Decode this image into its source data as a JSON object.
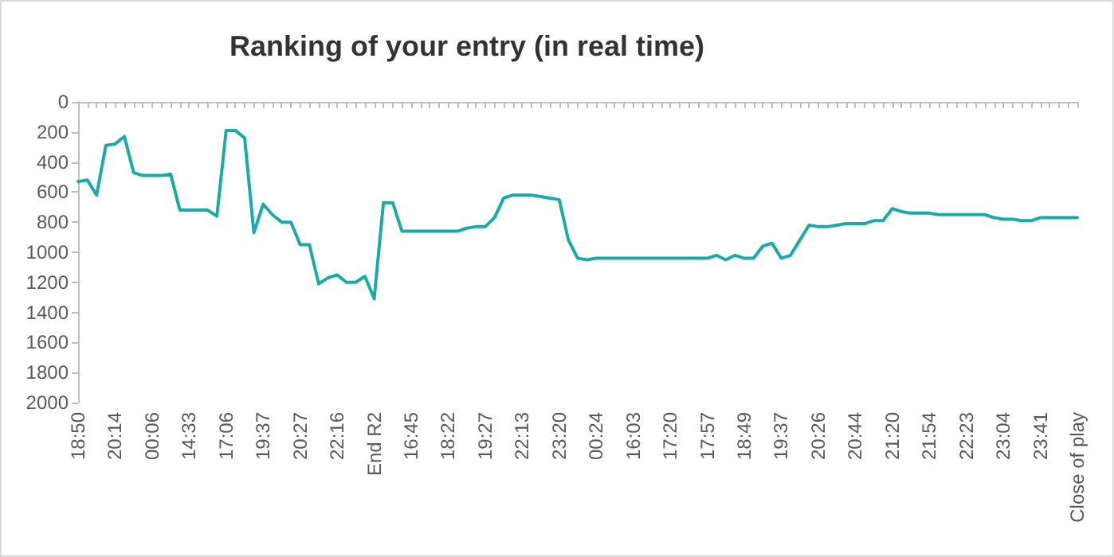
{
  "chart_data": {
    "type": "line",
    "title": "Ranking of your entry (in real time)",
    "categories": [
      "18:50",
      null,
      null,
      null,
      "20:14",
      null,
      null,
      null,
      "00:06",
      null,
      null,
      null,
      "14:33",
      null,
      null,
      null,
      "17:06",
      null,
      null,
      null,
      "19:37",
      null,
      null,
      null,
      "20:27",
      null,
      null,
      null,
      "22:16",
      null,
      null,
      null,
      "End R2",
      null,
      null,
      null,
      "16:45",
      null,
      null,
      null,
      "18:22",
      null,
      null,
      null,
      "19:27",
      null,
      null,
      null,
      "22:13",
      null,
      null,
      null,
      "23:20",
      null,
      null,
      null,
      "00:24",
      null,
      null,
      null,
      "16:03",
      null,
      null,
      null,
      "17:20",
      null,
      null,
      null,
      "17:57",
      null,
      null,
      null,
      "18:49",
      null,
      null,
      null,
      "19:37",
      null,
      null,
      null,
      "20:26",
      null,
      null,
      null,
      "20:44",
      null,
      null,
      null,
      "21:20",
      null,
      null,
      null,
      "21:54",
      null,
      null,
      null,
      "22:23",
      null,
      null,
      null,
      "23:04",
      null,
      null,
      null,
      "23:41",
      null,
      null,
      null,
      "Close of play"
    ],
    "series": [
      {
        "color": "#1aaaa8",
        "values": [
          530,
          520,
          620,
          290,
          280,
          230,
          470,
          490,
          490,
          490,
          480,
          720,
          720,
          720,
          720,
          760,
          190,
          190,
          240,
          870,
          680,
          750,
          800,
          800,
          950,
          950,
          1210,
          1170,
          1150,
          1200,
          1200,
          1160,
          1310,
          670,
          670,
          860,
          860,
          860,
          860,
          860,
          860,
          860,
          840,
          830,
          830,
          770,
          640,
          620,
          620,
          620,
          630,
          640,
          650,
          920,
          1040,
          1050,
          1040,
          1040,
          1040,
          1040,
          1040,
          1040,
          1040,
          1040,
          1040,
          1040,
          1040,
          1040,
          1040,
          1020,
          1050,
          1020,
          1040,
          1040,
          960,
          940,
          1040,
          1020,
          920,
          820,
          830,
          830,
          820,
          810,
          810,
          810,
          790,
          790,
          710,
          730,
          740,
          740,
          740,
          750,
          750,
          750,
          750,
          750,
          750,
          770,
          780,
          780,
          790,
          790,
          770,
          770,
          770,
          770,
          770
        ]
      }
    ],
    "ylim": [
      2000,
      0
    ],
    "yticks": [
      0,
      200,
      400,
      600,
      800,
      1000,
      1200,
      1400,
      1600,
      1800,
      2000
    ],
    "grid": false,
    "marker": "none",
    "line_style": "solid"
  }
}
